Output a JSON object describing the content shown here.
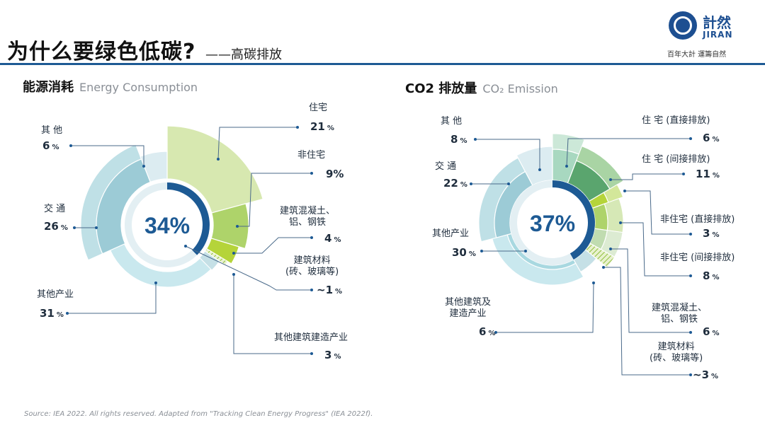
{
  "header": {
    "title": "为什么要绿色低碳?",
    "subtitle": "——高碳排放",
    "logo_cn": "計然",
    "logo_en": "JIRAN",
    "logo_slogan": "百年大計 運籌自然"
  },
  "source": "Source: IEA 2022. All rights reserved. Adapted from \"Tracking Clean Energy Progress\" (IEA 2022f).",
  "colors": {
    "accent": "#1d5a94",
    "blue_light": "#a8d8e0",
    "blue_mid": "#9ccbd6",
    "green_light": "#d7e8b0",
    "green_mid": "#aed36a",
    "green_dark": "#5aa56e",
    "lime": "#b5d43a"
  },
  "chart_data": [
    {
      "type": "pie",
      "title": "能源消耗",
      "subtitle": "Energy Consumption",
      "center_value": "34%",
      "slices": [
        {
          "label": "住宅",
          "display": "21",
          "unit": "%",
          "value": 21
        },
        {
          "label": "非住宅",
          "display": "9%",
          "unit": "",
          "value": 9
        },
        {
          "label": "建筑混凝土、\n铝、钢铁",
          "display": "4",
          "unit": "%",
          "value": 4
        },
        {
          "label": "建筑材料\n(砖、玻璃等)",
          "display": "~1",
          "unit": "%",
          "value": 1
        },
        {
          "label": "其他建筑建造产业",
          "display": "3",
          "unit": "%",
          "value": 3
        },
        {
          "label": "其他产业",
          "display": "31",
          "unit": "%",
          "value": 31
        },
        {
          "label": "交 通",
          "display": "26",
          "unit": "%",
          "value": 26
        },
        {
          "label": "其 他",
          "display": "6",
          "unit": "%",
          "value": 6
        }
      ]
    },
    {
      "type": "pie",
      "title": "CO2 排放量",
      "subtitle": "CO₂ Emission",
      "center_value": "37%",
      "slices": [
        {
          "label": "住 宅 (直接排放)",
          "display": "6",
          "unit": "%",
          "value": 6
        },
        {
          "label": "住 宅 (间接排放)",
          "display": "11",
          "unit": "%",
          "value": 11
        },
        {
          "label": "非住宅 (直接排放)",
          "display": "3",
          "unit": "%",
          "value": 3
        },
        {
          "label": "非住宅 (间接排放)",
          "display": "8",
          "unit": "%",
          "value": 8
        },
        {
          "label": "建筑混凝土、\n铝、钢铁",
          "display": "6",
          "unit": "%",
          "value": 6
        },
        {
          "label": "建筑材料\n(砖、玻璃等)",
          "display": "~3",
          "unit": "%",
          "value": 3
        },
        {
          "label": "其他建筑及\n建造产业",
          "display": "6",
          "unit": "%",
          "value": 6
        },
        {
          "label": "其他产业",
          "display": "30",
          "unit": "%",
          "value": 30
        },
        {
          "label": "交 通",
          "display": "22",
          "unit": "%",
          "value": 22
        },
        {
          "label": "其 他",
          "display": "8",
          "unit": "%",
          "value": 8
        }
      ]
    }
  ]
}
